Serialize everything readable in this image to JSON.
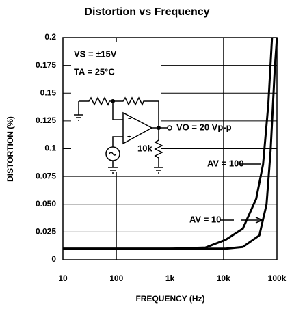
{
  "chart_data": {
    "type": "line",
    "title": "Distortion vs Frequency",
    "xlabel": "FREQUENCY (Hz)",
    "ylabel": "DISTORTION (%)",
    "xscale": "log",
    "grid": true,
    "xlim": [
      10,
      100000
    ],
    "xticks": [
      10,
      100,
      {
        "value": 1000,
        "label": "1k"
      },
      {
        "value": 10000,
        "label": "10k"
      },
      {
        "value": 100000,
        "label": "100k"
      }
    ],
    "ylim": [
      0,
      0.2
    ],
    "yticks": [
      0,
      0.025,
      {
        "value": 0.05,
        "label": "0.050"
      },
      0.075,
      0.1,
      0.125,
      0.15,
      0.175,
      0.2
    ],
    "series": [
      {
        "name": "AV = 100",
        "color": "#000000",
        "x": [
          10,
          1000,
          4600,
          11000,
          23000,
          41000,
          55000,
          69000,
          81000
        ],
        "values": [
          0.01,
          0.01,
          0.011,
          0.018,
          0.028,
          0.055,
          0.086,
          0.14,
          0.2
        ]
      },
      {
        "name": "AV = 10",
        "color": "#000000",
        "x": [
          10,
          5000,
          11000,
          23000,
          47000,
          64000,
          76000,
          91000,
          100000
        ],
        "values": [
          0.01,
          0.01,
          0.01,
          0.0115,
          0.022,
          0.05,
          0.098,
          0.172,
          0.2
        ]
      }
    ],
    "annotations": [
      "VS = ±15V",
      "TA = 25°C",
      "VO = 20 Vp-p",
      "10k"
    ]
  }
}
